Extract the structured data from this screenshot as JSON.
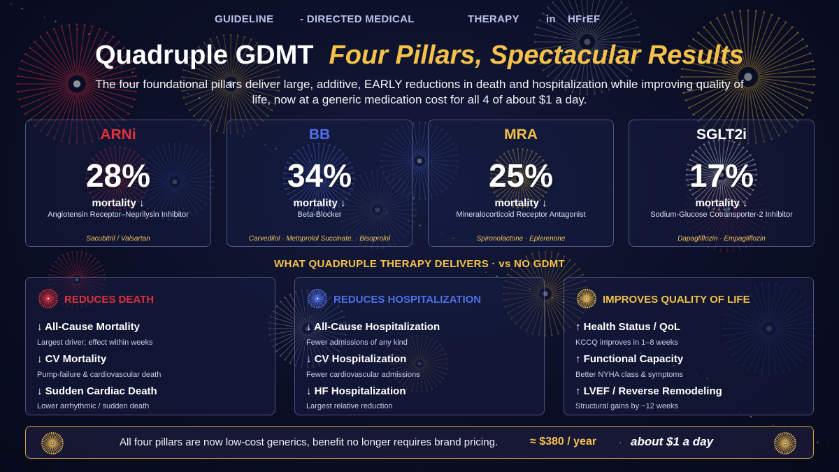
{
  "header": {
    "eyebrow": [
      "GUIDELINE",
      "- DIRECTED MEDICAL",
      "THERAPY",
      "in",
      "HFrEF"
    ],
    "title_main": "Quadruple GDMT",
    "title_accent": "Four Pillars, Spectacular Results",
    "subtitle": "The four foundational pillars deliver large, additive, EARLY reductions in death and hospitalization while improving quality of life, now at a generic medication cost for all 4 of about $1 a day."
  },
  "pillars": [
    {
      "name": "ARNi",
      "value": "28%",
      "metric": "mortality ↓",
      "full_name": "Angiotensin Receptor–Neprilysin Inhibitor",
      "drugs": "Sacubitril / Valsartan",
      "color": "#e0313c"
    },
    {
      "name": "BB",
      "value": "34%",
      "metric": "mortality ↓",
      "full_name": "Beta-Blocker",
      "drugs": "Carvedilol · Metoprolol Succinate. · Bisoprolol",
      "color": "#4f6fe8"
    },
    {
      "name": "MRA",
      "value": "25%",
      "metric": "mortality ↓",
      "full_name": "Mineralocorticoid Receptor Antagonist",
      "drugs": "Spironolactone · Eplerenone",
      "color": "#f1c045"
    },
    {
      "name": "SGLT2i",
      "value": "17%",
      "metric": "mortality ↓",
      "full_name": "Sodium-Glucose Cotransporter-2 Inhibitor",
      "drugs": "Dapagliflozin · Empagliflozin",
      "color": "#ffffff"
    }
  ],
  "section_heading": "WHAT QUADRUPLE THERAPY DELIVERS · vs NO GDMT",
  "benefits": [
    {
      "heading": "REDUCES DEATH",
      "color": "#e0313c",
      "items": [
        {
          "title": "↓ All-Cause Mortality",
          "desc": "Largest driver; effect within weeks"
        },
        {
          "title": "↓ CV Mortality",
          "desc": "Pump-failure & cardiovascular death"
        },
        {
          "title": "↓ Sudden Cardiac Death",
          "desc": "Lower arrhythmic / sudden death"
        }
      ]
    },
    {
      "heading": "REDUCES HOSPITALIZATION",
      "color": "#4f6fe8",
      "items": [
        {
          "title": "↓ All-Cause Hospitalization",
          "desc": "Fewer admissions of any kind"
        },
        {
          "title": "↓ CV Hospitalization",
          "desc": "Fewer cardiovascular admissions"
        },
        {
          "title": "↓ HF Hospitalization",
          "desc": "Largest relative reduction"
        }
      ]
    },
    {
      "heading": "IMPROVES QUALITY OF LIFE",
      "color": "#f1c045",
      "items": [
        {
          "title": "↑ Health Status / QoL",
          "desc": "KCCQ improves in 1–8 weeks"
        },
        {
          "title": "↑ Functional Capacity",
          "desc": "Better NYHA class & symptoms"
        },
        {
          "title": "↑ LVEF / Reverse Remodeling",
          "desc": "Structural gains by ~12 weeks"
        }
      ]
    }
  ],
  "footer": {
    "text": "All four pillars are now low-cost generics,  benefit no longer requires brand pricing.",
    "price": "≈ $380 / year",
    "separator": "·",
    "per_day": "about $1 a day"
  }
}
